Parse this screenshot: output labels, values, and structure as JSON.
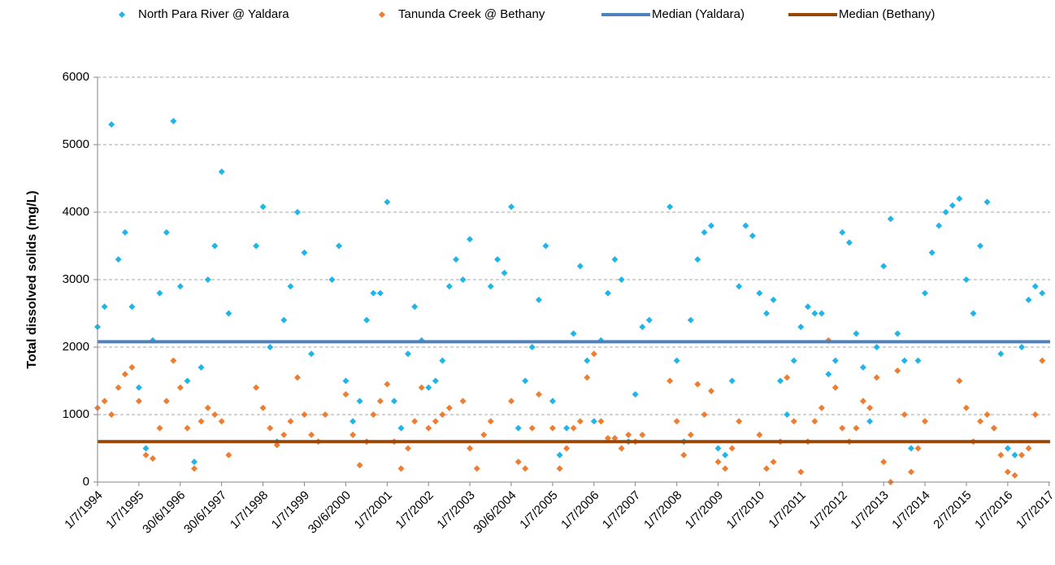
{
  "chart_data": {
    "type": "scatter",
    "y_label": "Total dissolved solids (mg/L)",
    "xlim": [
      "1/7/1994",
      "10/7/2017"
    ],
    "xticks": [
      "1/7/1994",
      "1/7/1995",
      "30/6/1996",
      "30/6/1997",
      "1/7/1998",
      "1/7/1999",
      "30/6/2000",
      "1/7/2001",
      "1/7/2002",
      "1/7/2003",
      "30/6/2004",
      "1/7/2005",
      "1/7/2006",
      "1/7/2007",
      "1/7/2008",
      "1/7/2009",
      "1/7/2010",
      "1/7/2011",
      "1/7/2012",
      "1/7/2013",
      "1/7/2014",
      "2/7/2015",
      "1/7/2016",
      "1/7/2017"
    ],
    "ylim": [
      0,
      6000
    ],
    "yticks": [
      0,
      1000,
      2000,
      3000,
      4000,
      5000,
      6000
    ],
    "grid": true,
    "x": [
      "1/7/1994",
      "1/9/1994",
      "1/11/1994",
      "1/1/1995",
      "1/3/1995",
      "1/5/1995",
      "1/7/1995",
      "1/9/1995",
      "1/11/1995",
      "1/1/1996",
      "1/3/1996",
      "1/5/1996",
      "1/7/1996",
      "1/9/1996",
      "1/11/1996",
      "1/1/1997",
      "1/3/1997",
      "1/5/1997",
      "1/7/1997",
      "1/9/1997",
      "1/11/1997",
      "1/1/1998",
      "1/3/1998",
      "1/5/1998",
      "1/7/1998",
      "1/9/1998",
      "1/11/1998",
      "1/1/1999",
      "1/3/1999",
      "1/5/1999",
      "1/7/1999",
      "1/9/1999",
      "1/11/1999",
      "1/1/2000",
      "1/3/2000",
      "1/5/2000",
      "1/7/2000",
      "1/9/2000",
      "1/11/2000",
      "1/1/2001",
      "1/3/2001",
      "1/5/2001",
      "1/7/2001",
      "1/9/2001",
      "1/11/2001",
      "1/1/2002",
      "1/3/2002",
      "1/5/2002",
      "1/7/2002",
      "1/9/2002",
      "1/11/2002",
      "1/1/2003",
      "1/3/2003",
      "1/5/2003",
      "1/7/2003",
      "1/9/2003",
      "1/11/2003",
      "1/1/2004",
      "1/3/2004",
      "1/5/2004",
      "1/7/2004",
      "1/9/2004",
      "1/11/2004",
      "1/1/2005",
      "1/3/2005",
      "1/5/2005",
      "1/7/2005",
      "1/9/2005",
      "1/11/2005",
      "1/1/2006",
      "1/3/2006",
      "1/5/2006",
      "1/7/2006",
      "1/9/2006",
      "1/11/2006",
      "1/1/2007",
      "1/3/2007",
      "1/5/2007",
      "1/7/2007",
      "1/9/2007",
      "1/11/2007",
      "1/1/2008",
      "1/3/2008",
      "1/5/2008",
      "1/7/2008",
      "1/9/2008",
      "1/11/2008",
      "1/1/2009",
      "1/3/2009",
      "1/5/2009",
      "1/7/2009",
      "1/9/2009",
      "1/11/2009",
      "1/1/2010",
      "1/3/2010",
      "1/5/2010",
      "1/7/2010",
      "1/9/2010",
      "1/11/2010",
      "1/1/2011",
      "1/3/2011",
      "1/5/2011",
      "1/7/2011",
      "1/9/2011",
      "1/11/2011",
      "1/1/2012",
      "1/3/2012",
      "1/5/2012",
      "1/7/2012",
      "1/9/2012",
      "1/11/2012",
      "1/1/2013",
      "1/3/2013",
      "1/5/2013",
      "1/7/2013",
      "1/9/2013",
      "1/11/2013",
      "1/1/2014",
      "1/3/2014",
      "1/5/2014",
      "1/7/2014",
      "1/9/2014",
      "1/11/2014",
      "1/1/2015",
      "1/3/2015",
      "1/5/2015",
      "1/7/2015",
      "1/9/2015",
      "1/11/2015",
      "1/1/2016",
      "1/3/2016",
      "1/5/2016",
      "1/7/2016",
      "1/9/2016",
      "1/11/2016",
      "1/1/2017",
      "1/3/2017",
      "1/5/2017"
    ],
    "series": [
      {
        "name": "North Para River @ Yaldara",
        "color": "#1fb5e8",
        "values": [
          2300,
          2600,
          5300,
          3300,
          3700,
          2600,
          1400,
          500,
          2100,
          2800,
          3700,
          5350,
          2900,
          1500,
          300,
          1700,
          3000,
          3500,
          4600,
          2500,
          null,
          null,
          null,
          3500,
          4080,
          2000,
          600,
          2400,
          2900,
          4000,
          3400,
          1900,
          null,
          null,
          3000,
          3500,
          1500,
          900,
          1200,
          2400,
          2800,
          2800,
          4150,
          1200,
          800,
          1900,
          2600,
          2100,
          1400,
          1500,
          1800,
          2900,
          3300,
          3000,
          3600,
          null,
          null,
          2900,
          3300,
          3100,
          4080,
          800,
          1500,
          2000,
          2700,
          3500,
          1200,
          400,
          800,
          2200,
          3200,
          1800,
          900,
          2100,
          2800,
          3300,
          3000,
          600,
          1300,
          2300,
          2400,
          null,
          null,
          4080,
          1800,
          600,
          2400,
          3300,
          3700,
          3800,
          500,
          400,
          1500,
          2900,
          3800,
          3650,
          2800,
          2500,
          2700,
          1500,
          1000,
          1800,
          2300,
          2600,
          2500,
          2500,
          1600,
          1800,
          3700,
          3550,
          2200,
          1700,
          900,
          2000,
          3200,
          3900,
          2200,
          1800,
          500,
          1800,
          2800,
          3400,
          3800,
          4000,
          4100,
          4200,
          3000,
          2500,
          3500,
          4150,
          800,
          1900,
          500,
          400,
          2000,
          2700,
          2900,
          2800
        ]
      },
      {
        "name": "Tanunda Creek @ Bethany",
        "color": "#ee7d31",
        "values": [
          1100,
          1200,
          1000,
          1400,
          1600,
          1700,
          1200,
          400,
          350,
          800,
          1200,
          1800,
          1400,
          800,
          200,
          900,
          1100,
          1000,
          900,
          400,
          null,
          null,
          null,
          1400,
          1100,
          800,
          550,
          700,
          900,
          1550,
          1000,
          700,
          600,
          1000,
          null,
          null,
          1300,
          700,
          250,
          600,
          1000,
          1200,
          1450,
          600,
          200,
          500,
          900,
          1400,
          800,
          900,
          1000,
          1100,
          null,
          1200,
          500,
          200,
          700,
          900,
          null,
          null,
          1200,
          300,
          200,
          800,
          1300,
          null,
          800,
          200,
          500,
          800,
          900,
          1550,
          1900,
          900,
          650,
          650,
          500,
          700,
          600,
          700,
          null,
          null,
          null,
          1500,
          900,
          400,
          700,
          1450,
          1000,
          1350,
          300,
          200,
          500,
          900,
          null,
          null,
          700,
          200,
          300,
          600,
          1550,
          900,
          150,
          600,
          900,
          1100,
          2100,
          1400,
          800,
          600,
          800,
          1200,
          1100,
          1550,
          300,
          0,
          1650,
          1000,
          150,
          500,
          900,
          null,
          null,
          null,
          null,
          1500,
          1100,
          600,
          900,
          1000,
          800,
          400,
          150,
          100,
          400,
          500,
          1000,
          1800
        ]
      }
    ],
    "medians": [
      {
        "name": "Median (Yaldara)",
        "color": "#4f81bd",
        "value": 2080
      },
      {
        "name": "Median (Bethany)",
        "color": "#974706",
        "value": 600
      }
    ]
  }
}
